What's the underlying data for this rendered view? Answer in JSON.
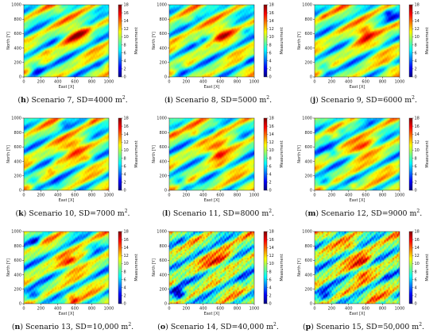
{
  "chart_data": [
    {
      "type": "heatmap",
      "panel_letter": "h",
      "caption": "Scenario 7, SD=4000 m",
      "caption_sup": "2",
      "caption_end": ".",
      "xlabel": "East [X]",
      "ylabel": "North [Y]",
      "colorbar_label": "Measurement",
      "xlim": [
        0,
        1000
      ],
      "ylim": [
        0,
        1000
      ],
      "x_ticks": [
        "0",
        "200",
        "400",
        "600",
        "800",
        "1000"
      ],
      "y_ticks": [
        "0",
        "200",
        "400",
        "600",
        "800",
        "1000"
      ],
      "colorbar_range": [
        0,
        18
      ],
      "colorbar_ticks": [
        "0",
        "2",
        "4",
        "6",
        "8",
        "10",
        "12",
        "14",
        "16",
        "18"
      ],
      "sd_m2": 4000
    },
    {
      "type": "heatmap",
      "panel_letter": "i",
      "caption": "Scenario 8, SD=5000 m",
      "caption_sup": "2",
      "caption_end": ".",
      "xlabel": "East [X]",
      "ylabel": "North [Y]",
      "colorbar_label": "Measurement",
      "xlim": [
        0,
        1000
      ],
      "ylim": [
        0,
        1000
      ],
      "x_ticks": [
        "0",
        "200",
        "400",
        "600",
        "800",
        "1000"
      ],
      "y_ticks": [
        "0",
        "200",
        "400",
        "600",
        "800",
        "1000"
      ],
      "colorbar_range": [
        0,
        18
      ],
      "colorbar_ticks": [
        "0",
        "2",
        "4",
        "6",
        "8",
        "10",
        "12",
        "14",
        "16",
        "18"
      ],
      "sd_m2": 5000
    },
    {
      "type": "heatmap",
      "panel_letter": "j",
      "caption": "Scenario 9, SD=6000 m",
      "caption_sup": "2",
      "caption_end": ".",
      "xlabel": "East [X]",
      "ylabel": "North [Y]",
      "colorbar_label": "Measurement",
      "xlim": [
        0,
        1000
      ],
      "ylim": [
        0,
        1000
      ],
      "x_ticks": [
        "0",
        "200",
        "400",
        "600",
        "800",
        "1000"
      ],
      "y_ticks": [
        "0",
        "200",
        "400",
        "600",
        "800",
        "1000"
      ],
      "colorbar_range": [
        0,
        18
      ],
      "colorbar_ticks": [
        "0",
        "2",
        "4",
        "6",
        "8",
        "10",
        "12",
        "14",
        "16",
        "18"
      ],
      "sd_m2": 6000
    },
    {
      "type": "heatmap",
      "panel_letter": "k",
      "caption": "Scenario 10, SD=7000 m",
      "caption_sup": "2",
      "caption_end": ".",
      "xlabel": "East [X]",
      "ylabel": "North [Y]",
      "colorbar_label": "Measurement",
      "xlim": [
        0,
        1000
      ],
      "ylim": [
        0,
        1000
      ],
      "x_ticks": [
        "0",
        "200",
        "400",
        "600",
        "800",
        "1000"
      ],
      "y_ticks": [
        "0",
        "200",
        "400",
        "600",
        "800",
        "1000"
      ],
      "colorbar_range": [
        0,
        18
      ],
      "colorbar_ticks": [
        "0",
        "2",
        "4",
        "6",
        "8",
        "10",
        "12",
        "14",
        "16",
        "18"
      ],
      "sd_m2": 7000
    },
    {
      "type": "heatmap",
      "panel_letter": "l",
      "caption": "Scenario 11, SD=8000 m",
      "caption_sup": "2",
      "caption_end": ".",
      "xlabel": "East [X]",
      "ylabel": "North [Y]",
      "colorbar_label": "Measurement",
      "xlim": [
        0,
        1000
      ],
      "ylim": [
        0,
        1000
      ],
      "x_ticks": [
        "0",
        "200",
        "400",
        "600",
        "800",
        "1000"
      ],
      "y_ticks": [
        "0",
        "200",
        "400",
        "600",
        "800",
        "1000"
      ],
      "colorbar_range": [
        0,
        18
      ],
      "colorbar_ticks": [
        "0",
        "2",
        "4",
        "6",
        "8",
        "10",
        "12",
        "14",
        "16",
        "18"
      ],
      "sd_m2": 8000
    },
    {
      "type": "heatmap",
      "panel_letter": "m",
      "caption": "Scenario 12, SD=9000 m",
      "caption_sup": "2",
      "caption_end": ".",
      "xlabel": "East [X]",
      "ylabel": "North [Y]",
      "colorbar_label": "Measurement",
      "xlim": [
        0,
        1000
      ],
      "ylim": [
        0,
        1000
      ],
      "x_ticks": [
        "0",
        "200",
        "400",
        "600",
        "800",
        "1000"
      ],
      "y_ticks": [
        "0",
        "200",
        "400",
        "600",
        "800",
        "1000"
      ],
      "colorbar_range": [
        0,
        18
      ],
      "colorbar_ticks": [
        "0",
        "2",
        "4",
        "6",
        "8",
        "10",
        "12",
        "14",
        "16",
        "18"
      ],
      "sd_m2": 9000
    },
    {
      "type": "heatmap",
      "panel_letter": "n",
      "caption": "Scenario 13, SD=10,000 m",
      "caption_sup": "2",
      "caption_end": ".",
      "xlabel": "East [X]",
      "ylabel": "North [Y]",
      "colorbar_label": "Measurement",
      "xlim": [
        0,
        1000
      ],
      "ylim": [
        0,
        1000
      ],
      "x_ticks": [
        "0",
        "200",
        "400",
        "600",
        "800",
        "1000"
      ],
      "y_ticks": [
        "0",
        "200",
        "400",
        "600",
        "800",
        "1000"
      ],
      "colorbar_range": [
        0,
        18
      ],
      "colorbar_ticks": [
        "0",
        "2",
        "4",
        "6",
        "8",
        "10",
        "12",
        "14",
        "16",
        "18"
      ],
      "sd_m2": 10000
    },
    {
      "type": "heatmap",
      "panel_letter": "o",
      "caption": "Scenario 14, SD=40,000 m",
      "caption_sup": "2",
      "caption_end": ".",
      "xlabel": "East [X]",
      "ylabel": "North [Y]",
      "colorbar_label": "Measurement",
      "xlim": [
        0,
        1000
      ],
      "ylim": [
        0,
        1000
      ],
      "x_ticks": [
        "0",
        "200",
        "400",
        "600",
        "800",
        "1000"
      ],
      "y_ticks": [
        "0",
        "200",
        "400",
        "600",
        "800",
        "1000"
      ],
      "colorbar_range": [
        0,
        18
      ],
      "colorbar_ticks": [
        "0",
        "2",
        "4",
        "6",
        "8",
        "10",
        "12",
        "14",
        "16",
        "18"
      ],
      "sd_m2": 40000
    },
    {
      "type": "heatmap",
      "panel_letter": "p",
      "caption": "Scenario 15, SD=50,000 m",
      "caption_sup": "2",
      "caption_end": ".",
      "xlabel": "East [X]",
      "ylabel": "North [Y]",
      "colorbar_label": "Measurement",
      "xlim": [
        0,
        1000
      ],
      "ylim": [
        0,
        1000
      ],
      "x_ticks": [
        "0",
        "200",
        "400",
        "600",
        "800",
        "1000"
      ],
      "y_ticks": [
        "0",
        "200",
        "400",
        "600",
        "800",
        "1000"
      ],
      "colorbar_range": [
        0,
        18
      ],
      "colorbar_ticks": [
        "0",
        "2",
        "4",
        "6",
        "8",
        "10",
        "12",
        "14",
        "16",
        "18"
      ],
      "sd_m2": 50000
    }
  ],
  "colormap": {
    "name": "jet",
    "stops": [
      "#00007f",
      "#0000ff",
      "#007fff",
      "#00ffff",
      "#7fff7f",
      "#ffff00",
      "#ff7f00",
      "#ff0000",
      "#7f0000"
    ]
  }
}
